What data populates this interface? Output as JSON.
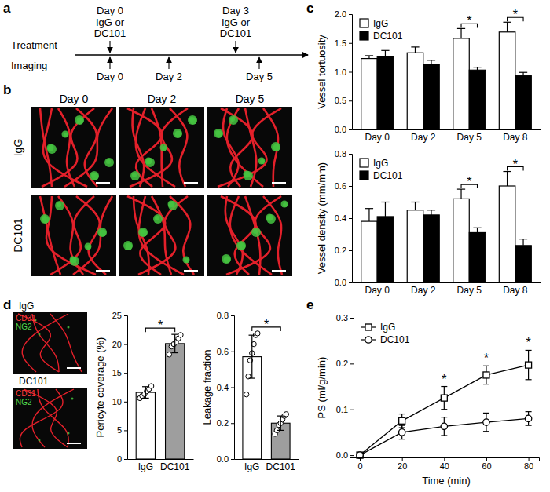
{
  "panel_labels": [
    "a",
    "b",
    "c",
    "d",
    "e"
  ],
  "timeline": {
    "treatment_label": "Treatment",
    "imaging_label": "Imaging",
    "treatments": [
      {
        "day": "Day 0",
        "lines": [
          "IgG or",
          "DC101"
        ]
      },
      {
        "day": "Day 3",
        "lines": [
          "IgG or",
          "DC101"
        ]
      }
    ],
    "imaging": [
      "Day 0",
      "Day 2",
      "Day 5"
    ]
  },
  "images_b": {
    "columns": [
      "Day 0",
      "Day 2",
      "Day 5"
    ],
    "rows": [
      "IgG",
      "DC101"
    ]
  },
  "images_d": {
    "rows": [
      "IgG",
      "DC101"
    ],
    "stains": [
      "CD31",
      "NG2"
    ]
  },
  "chart_data": [
    {
      "type": "bar",
      "ylabel": "Vessel tortuosity",
      "categories": [
        "Day 0",
        "Day 2",
        "Day 5",
        "Day 8"
      ],
      "series": [
        {
          "name": "IgG",
          "color": "#ffffff",
          "values": [
            1.23,
            1.33,
            1.58,
            1.69
          ],
          "errors": [
            0.05,
            0.1,
            0.17,
            0.17
          ]
        },
        {
          "name": "DC101",
          "color": "#000000",
          "values": [
            1.27,
            1.13,
            1.03,
            0.93
          ],
          "errors": [
            0.1,
            0.07,
            0.05,
            0.06
          ]
        }
      ],
      "ylim": [
        0,
        2
      ],
      "yticks": [
        {
          "value": 0,
          "label": "0.0"
        },
        {
          "value": 0.5,
          "label": "0.5"
        },
        {
          "value": 1,
          "label": "1.0"
        },
        {
          "value": 1.5,
          "label": "1.5"
        },
        {
          "value": 2,
          "label": "2.0"
        }
      ],
      "legend": "upper left",
      "annotations": [
        {
          "category": "Day 5",
          "text": "*"
        },
        {
          "category": "Day 8",
          "text": "*"
        }
      ]
    },
    {
      "type": "bar",
      "ylabel": "Vessel density (mm/mm)",
      "categories": [
        "Day 0",
        "Day 2",
        "Day 5",
        "Day 8"
      ],
      "series": [
        {
          "name": "IgG",
          "color": "#ffffff",
          "values": [
            0.38,
            0.45,
            0.52,
            0.6
          ],
          "errors": [
            0.08,
            0.05,
            0.06,
            0.09
          ]
        },
        {
          "name": "DC101",
          "color": "#000000",
          "values": [
            0.41,
            0.42,
            0.31,
            0.23
          ],
          "errors": [
            0.09,
            0.03,
            0.03,
            0.04
          ]
        }
      ],
      "ylim": [
        0,
        0.8
      ],
      "yticks": [
        {
          "value": 0,
          "label": "0.0"
        },
        {
          "value": 0.2,
          "label": "0.2"
        },
        {
          "value": 0.4,
          "label": "0.4"
        },
        {
          "value": 0.6,
          "label": "0.6"
        },
        {
          "value": 0.8,
          "label": "0.8"
        }
      ],
      "legend": "upper left",
      "annotations": [
        {
          "category": "Day 5",
          "text": "*"
        },
        {
          "category": "Day 8",
          "text": "*"
        }
      ]
    },
    {
      "type": "bar",
      "ylabel": "Pericyte coverage (%)",
      "categories": [
        "IgG",
        "DC101"
      ],
      "values": [
        11.6,
        20.1
      ],
      "errors": [
        1.0,
        1.6
      ],
      "points": [
        [
          10.6,
          11.0,
          11.3,
          11.8,
          12.2,
          12.7
        ],
        [
          18.2,
          19.6,
          20.0,
          20.4,
          21.0,
          21.6
        ]
      ],
      "colors": [
        "#ffffff",
        "#9e9e9e"
      ],
      "ylim": [
        0,
        25
      ],
      "yticks": [
        0,
        5,
        10,
        15,
        20,
        25
      ],
      "annotations": [
        {
          "text": "*"
        }
      ]
    },
    {
      "type": "bar",
      "ylabel": "Leakage fraction",
      "categories": [
        "IgG",
        "DC101"
      ],
      "values": [
        0.57,
        0.2
      ],
      "errors": [
        0.12,
        0.04
      ],
      "points": [
        [
          0.36,
          0.46,
          0.55,
          0.59,
          0.64,
          0.69,
          0.7
        ],
        [
          0.14,
          0.16,
          0.19,
          0.2,
          0.22,
          0.24,
          0.25
        ]
      ],
      "colors": [
        "#ffffff",
        "#9e9e9e"
      ],
      "ylim": [
        0,
        0.8
      ],
      "yticks": [
        {
          "value": 0,
          "label": "0.0"
        },
        {
          "value": 0.2,
          "label": "0.2"
        },
        {
          "value": 0.4,
          "label": "0.4"
        },
        {
          "value": 0.6,
          "label": "0.6"
        },
        {
          "value": 0.8,
          "label": "0.8"
        }
      ],
      "annotations": [
        {
          "text": "*"
        }
      ]
    },
    {
      "type": "line",
      "xlabel": "Time (min)",
      "ylabel": "PS (ml/g/min)",
      "x": [
        0,
        20,
        40,
        60,
        80
      ],
      "series": [
        {
          "name": "IgG",
          "color": "#000000",
          "marker": "square",
          "values": [
            0,
            0.075,
            0.125,
            0.175,
            0.197
          ],
          "errors": [
            0,
            0.015,
            0.025,
            0.02,
            0.032
          ]
        },
        {
          "name": "DC101",
          "color": "#000000",
          "marker": "circle",
          "values": [
            0,
            0.05,
            0.063,
            0.072,
            0.08
          ],
          "errors": [
            0,
            0.015,
            0.02,
            0.02,
            0.015
          ]
        }
      ],
      "xlim": [
        -3,
        85
      ],
      "xticks": [
        0,
        20,
        40,
        60,
        80
      ],
      "ylim": [
        -0.005,
        0.3
      ],
      "yticks": [
        {
          "value": 0,
          "label": "0.0"
        },
        {
          "value": 0.1,
          "label": "0.1"
        },
        {
          "value": 0.2,
          "label": "0.2"
        },
        {
          "value": 0.3,
          "label": "0.3"
        }
      ],
      "legend": "upper left",
      "annotations": [
        {
          "x": 40,
          "text": "*"
        },
        {
          "x": 60,
          "text": "*"
        },
        {
          "x": 80,
          "text": "*"
        }
      ]
    }
  ]
}
